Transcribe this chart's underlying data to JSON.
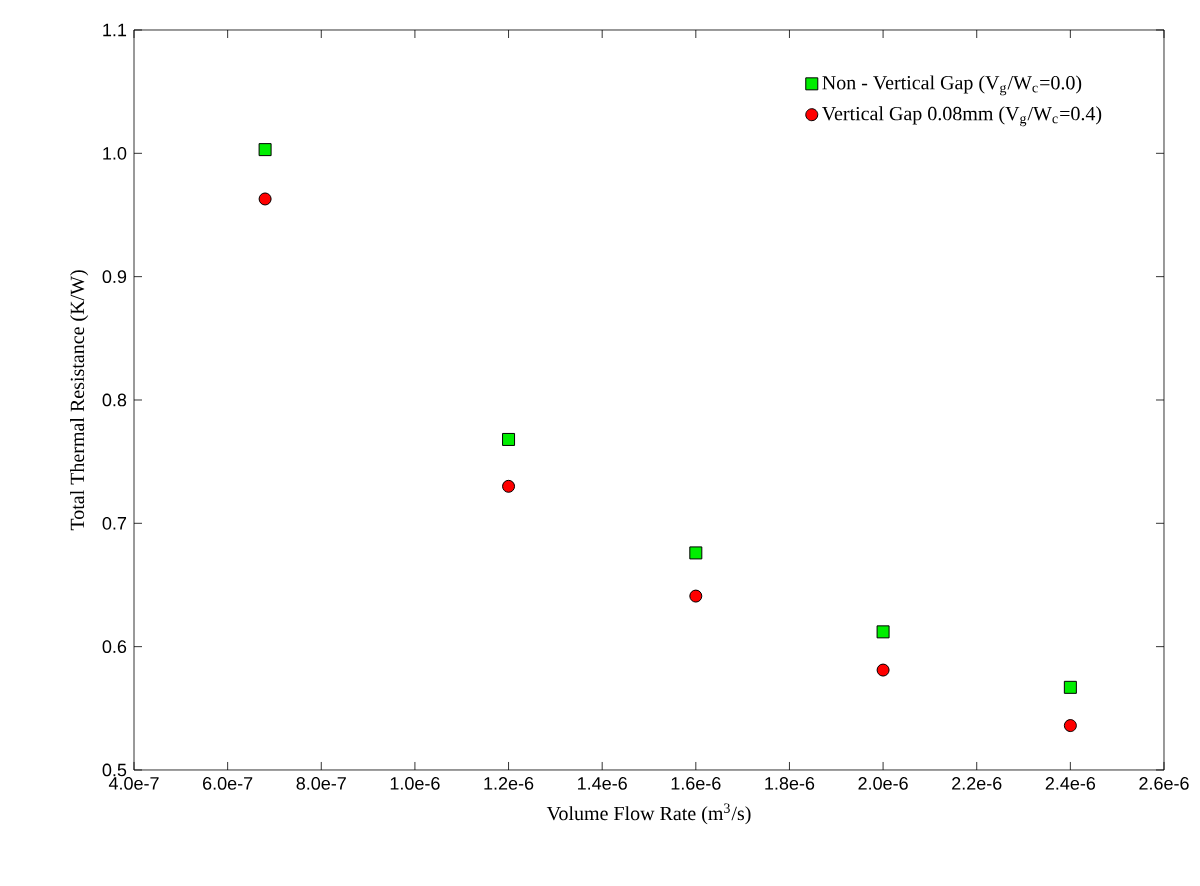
{
  "chart_data": {
    "type": "scatter",
    "xlabel": "Volume Flow Rate (m$^{3}$/s)",
    "ylabel": "Total Thermal Resistance (K/W)",
    "x": [
      6.8e-07,
      1.2e-06,
      1.6e-06,
      2e-06,
      2.4e-06
    ],
    "series": [
      {
        "name": "Non - Vertical Gap (V$_{g}$/W$_{c}$=0.0)",
        "color": "#00ee00",
        "marker": "square",
        "values": [
          1.003,
          0.768,
          0.676,
          0.612,
          0.567
        ]
      },
      {
        "name": "Vertical Gap 0.08mm (V$_{g}$/W$_{c}$=0.4)",
        "color": "#ff0000",
        "marker": "circle",
        "values": [
          0.963,
          0.73,
          0.641,
          0.581,
          0.536
        ]
      }
    ],
    "xlim": [
      4e-07,
      2.6e-06
    ],
    "xticks": [
      {
        "value": 4e-07,
        "label": "4.0e-7"
      },
      {
        "value": 6e-07,
        "label": "6.0e-7"
      },
      {
        "value": 8e-07,
        "label": "8.0e-7"
      },
      {
        "value": 1e-06,
        "label": "1.0e-6"
      },
      {
        "value": 1.2e-06,
        "label": "1.2e-6"
      },
      {
        "value": 1.4e-06,
        "label": "1.4e-6"
      },
      {
        "value": 1.6e-06,
        "label": "1.6e-6"
      },
      {
        "value": 1.8e-06,
        "label": "1.8e-6"
      },
      {
        "value": 2e-06,
        "label": "2.0e-6"
      },
      {
        "value": 2.2e-06,
        "label": "2.2e-6"
      },
      {
        "value": 2.4e-06,
        "label": "2.4e-6"
      },
      {
        "value": 2.6e-06,
        "label": "2.6e-6"
      }
    ],
    "ylim": [
      0.5,
      1.1
    ],
    "yticks": [
      {
        "value": 0.5,
        "label": "0.5"
      },
      {
        "value": 0.6,
        "label": "0.6"
      },
      {
        "value": 0.7,
        "label": "0.7"
      },
      {
        "value": 0.8,
        "label": "0.8"
      },
      {
        "value": 0.9,
        "label": "0.9"
      },
      {
        "value": 1.0,
        "label": "1.0"
      },
      {
        "value": 1.1,
        "label": "1.1"
      }
    ],
    "grid": false,
    "legend": "top right"
  }
}
